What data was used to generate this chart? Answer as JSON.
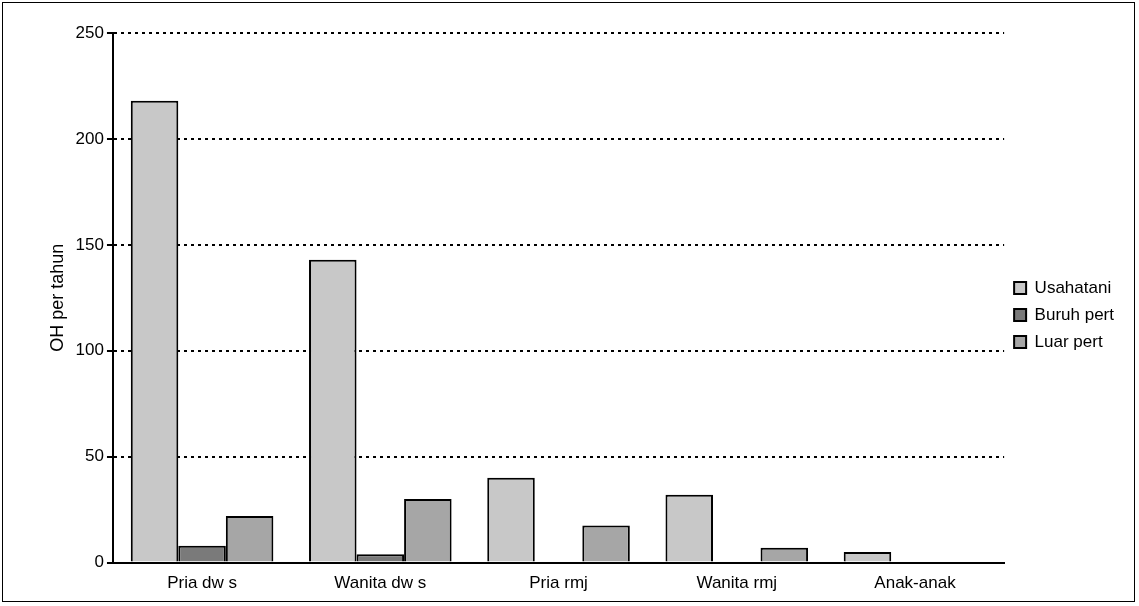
{
  "chart_data": {
    "type": "bar",
    "ylabel": "OH per tahun",
    "categories": [
      "Pria dw s",
      "Wanita dw s",
      "Pria rmj",
      "Wanita rmj",
      "Anak-anak"
    ],
    "series": [
      {
        "name": "Usahatani",
        "color": "#c8c8c8",
        "values": [
          218,
          143,
          40,
          32,
          5
        ]
      },
      {
        "name": "Buruh pert",
        "color": "#7a7a7a",
        "values": [
          8,
          4,
          0,
          0,
          0
        ]
      },
      {
        "name": "Luar pert",
        "color": "#a6a6a6",
        "values": [
          22,
          30,
          17.5,
          7,
          0
        ]
      }
    ],
    "ylim": [
      0,
      250
    ],
    "yticks": [
      0,
      50,
      100,
      150,
      200,
      250
    ],
    "grid": "y",
    "line_style": "dotted",
    "legend": "right"
  }
}
